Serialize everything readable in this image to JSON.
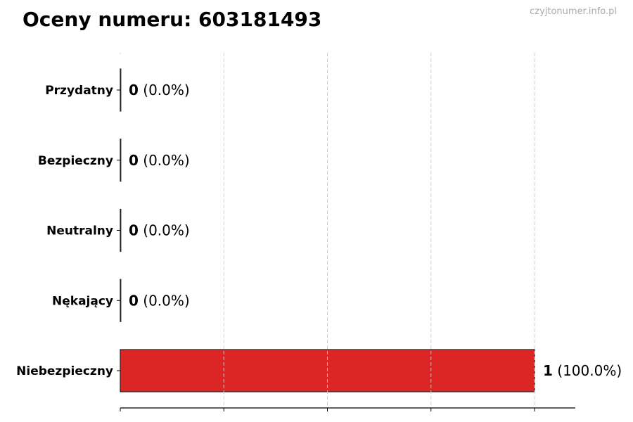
{
  "chart_data": {
    "type": "bar",
    "orientation": "horizontal",
    "title": "Oceny numeru: 603181493",
    "watermark": "czyjtonumer.info.pl",
    "categories": [
      "Przydatny",
      "Bezpieczny",
      "Neutralny",
      "Nękający",
      "Niebezpieczny"
    ],
    "values": [
      0,
      0,
      0,
      0,
      1
    ],
    "percent_labels": [
      "(0.0%)",
      "(0.0%)",
      "(0.0%)",
      "(0.0%)",
      "(100.0%)"
    ],
    "bar_colors": [
      "#dc2626",
      "#dc2626",
      "#dc2626",
      "#dc2626",
      "#dc2626"
    ],
    "xlim": [
      0,
      1.1
    ],
    "x_ticks": [
      0,
      0.25,
      0.5,
      0.75,
      1.0
    ],
    "x_tick_labels_shown": false,
    "grid": "vertical dashed",
    "xlabel": "",
    "ylabel": ""
  }
}
